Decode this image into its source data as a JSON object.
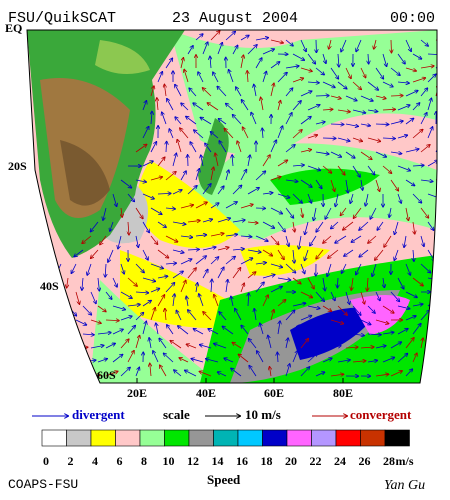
{
  "header": {
    "source": "FSU/QuikSCAT",
    "date": "23 August 2004",
    "time": "00:00"
  },
  "map": {
    "lat_labels": [
      "EQ",
      "20S",
      "40S",
      "60S"
    ],
    "lon_labels": [
      "20E",
      "40E",
      "60E",
      "80E"
    ]
  },
  "legend": {
    "divergent": "divergent",
    "scale": "scale",
    "scale_value": "10 m/s",
    "convergent": "convergent"
  },
  "colorbar": {
    "colors": [
      "#ffffff",
      "#c8c8c8",
      "#ffff00",
      "#ffc8c8",
      "#96ff96",
      "#00e600",
      "#969696",
      "#00b4b4",
      "#00c8ff",
      "#0000c8",
      "#ff64ff",
      "#b496ff",
      "#ff0000",
      "#c83200",
      "#000000"
    ],
    "labels": [
      "0",
      "2",
      "4",
      "6",
      "8",
      "10",
      "12",
      "14",
      "16",
      "18",
      "20",
      "22",
      "24",
      "26",
      "28"
    ],
    "unit": "m/s",
    "title": "Speed"
  },
  "footer": {
    "left": "COAPS-FSU",
    "right": "Yan Gu"
  }
}
